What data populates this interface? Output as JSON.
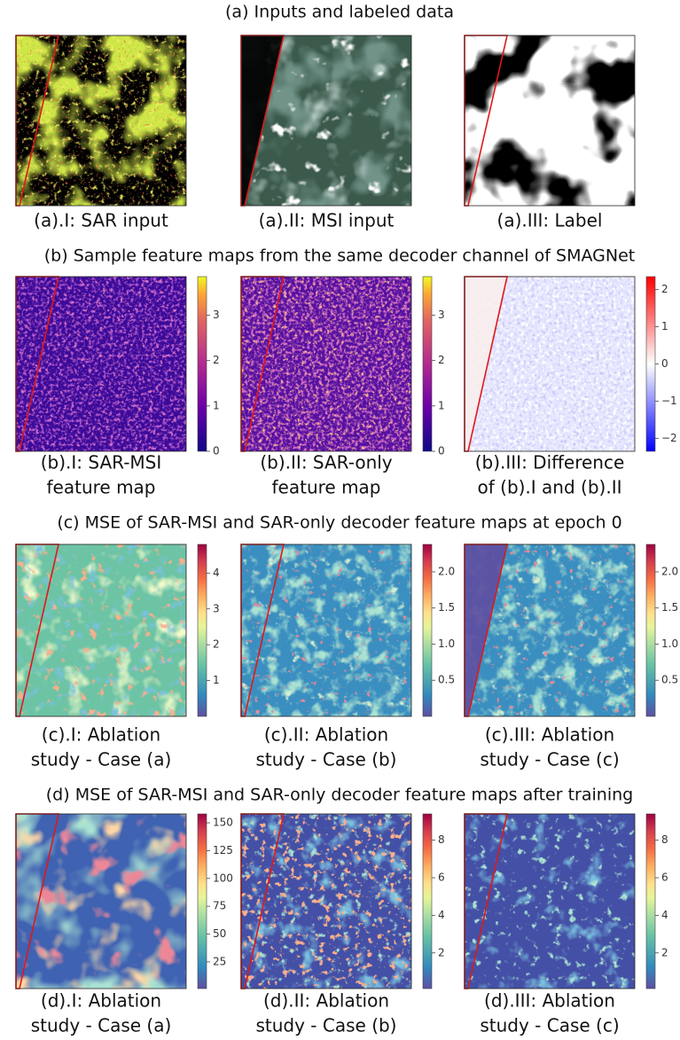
{
  "sections": [
    {
      "title": "(a) Inputs and labeled data",
      "panels": [
        {
          "caption": [
            "(a).I: SAR input"
          ]
        },
        {
          "caption": [
            "(a).II: MSI input"
          ]
        },
        {
          "caption": [
            "(a).III: Label"
          ]
        }
      ]
    },
    {
      "title": "(b) Sample feature maps from the same decoder channel of SMAGNet",
      "panels": [
        {
          "caption": [
            "(b).I: SAR-MSI",
            "feature map"
          ],
          "colorbar": {
            "lim": [
              0,
              3.85
            ],
            "ticks": [
              0,
              1,
              2,
              3
            ]
          }
        },
        {
          "caption": [
            "(b).II: SAR-only",
            "feature map"
          ],
          "colorbar": {
            "lim": [
              0,
              3.85
            ],
            "ticks": [
              0,
              1,
              2,
              3
            ]
          }
        },
        {
          "caption": [
            "(b).III: Difference",
            "of (b).I and (b).II"
          ],
          "colorbar": {
            "lim": [
              -2.35,
              2.35
            ],
            "ticks": [
              {
                "value": -2,
                "label": "−2"
              },
              {
                "value": -1,
                "label": "−1"
              },
              0,
              1,
              2
            ]
          }
        }
      ]
    },
    {
      "title": "(c) MSE of SAR-MSI and SAR-only decoder feature maps at epoch 0",
      "panels": [
        {
          "caption": [
            "(c).I: Ablation",
            "study - Case (a)"
          ],
          "colorbar": {
            "lim": [
              0,
              4.8
            ],
            "ticks": [
              1,
              2,
              3,
              4
            ]
          }
        },
        {
          "caption": [
            "(c).II: Ablation",
            "study - Case (b)"
          ],
          "colorbar": {
            "lim": [
              0,
              2.38
            ],
            "ticks": [
              0.5,
              {
                "value": 1,
                "label": "1.0"
              },
              1.5,
              {
                "value": 2,
                "label": "2.0"
              }
            ]
          }
        },
        {
          "caption": [
            "(c).III: Ablation",
            "study - Case (c)"
          ],
          "colorbar": {
            "lim": [
              0,
              2.38
            ],
            "ticks": [
              0.5,
              {
                "value": 1,
                "label": "1.0"
              },
              1.5,
              {
                "value": 2,
                "label": "2.0"
              }
            ]
          }
        }
      ]
    },
    {
      "title": "(d) MSE of SAR-MSI and SAR-only decoder feature maps after training",
      "panels": [
        {
          "caption": [
            "(d).I: Ablation",
            "study - Case (a)"
          ],
          "colorbar": {
            "lim": [
              1,
              158
            ],
            "ticks": [
              25,
              50,
              75,
              100,
              125,
              150
            ]
          }
        },
        {
          "caption": [
            "(d).II: Ablation",
            "study - Case (b)"
          ],
          "colorbar": {
            "lim": [
              0.1,
              9.4
            ],
            "ticks": [
              2,
              4,
              6,
              8
            ]
          }
        },
        {
          "caption": [
            "(d).III: Ablation",
            "study - Case (c)"
          ],
          "colorbar": {
            "lim": [
              0.1,
              9.4
            ],
            "ticks": [
              2,
              4,
              6,
              8
            ]
          }
        }
      ]
    }
  ]
}
